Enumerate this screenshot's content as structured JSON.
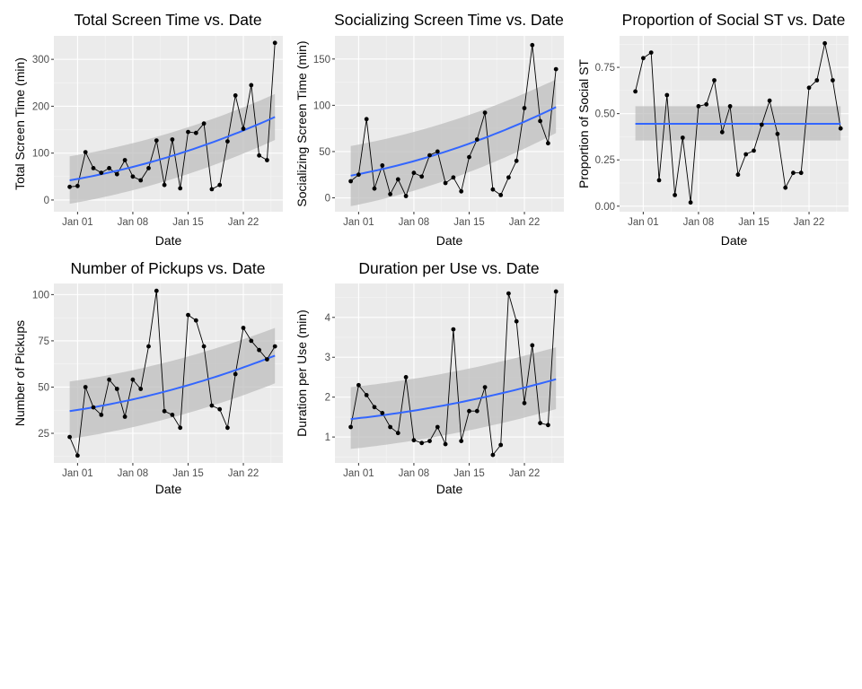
{
  "chart_data": [
    {
      "type": "line",
      "title": "Total Screen Time vs. Date",
      "xlabel": "Date",
      "ylabel": "Total Screen Time (min)",
      "x": [
        "2020-12-31",
        "2021-01-01",
        "2021-01-02",
        "2021-01-03",
        "2021-01-04",
        "2021-01-05",
        "2021-01-06",
        "2021-01-07",
        "2021-01-08",
        "2021-01-09",
        "2021-01-10",
        "2021-01-11",
        "2021-01-12",
        "2021-01-13",
        "2021-01-14",
        "2021-01-15",
        "2021-01-16",
        "2021-01-17",
        "2021-01-18",
        "2021-01-19",
        "2021-01-20",
        "2021-01-21",
        "2021-01-22",
        "2021-01-23",
        "2021-01-24",
        "2021-01-25",
        "2021-01-26"
      ],
      "values": [
        28,
        30,
        102,
        68,
        58,
        68,
        55,
        85,
        50,
        42,
        68,
        127,
        32,
        129,
        25,
        145,
        143,
        163,
        23,
        32,
        125,
        223,
        152,
        245,
        95,
        85,
        335
      ],
      "trend": {
        "method": "smooth",
        "x": [
          "2020-12-31",
          "2021-01-26"
        ],
        "values": [
          42,
          177
        ],
        "band_low": [
          -8,
          128
        ],
        "band_high": [
          93,
          226
        ]
      },
      "xticks": [
        {
          "x": "2021-01-01",
          "label": "Jan 01"
        },
        {
          "x": "2021-01-08",
          "label": "Jan 08"
        },
        {
          "x": "2021-01-15",
          "label": "Jan 15"
        },
        {
          "x": "2021-01-22",
          "label": "Jan 22"
        }
      ],
      "yticks": [
        0,
        100,
        200,
        300
      ],
      "xlim": [
        "2020-12-29",
        "2021-01-27"
      ],
      "ylim": [
        -25,
        350
      ]
    },
    {
      "type": "line",
      "title": "Socializing Screen Time vs. Date",
      "xlabel": "Date",
      "ylabel": "Socializing Screen Time (min)",
      "x": [
        "2020-12-31",
        "2021-01-01",
        "2021-01-02",
        "2021-01-03",
        "2021-01-04",
        "2021-01-05",
        "2021-01-06",
        "2021-01-07",
        "2021-01-08",
        "2021-01-09",
        "2021-01-10",
        "2021-01-11",
        "2021-01-12",
        "2021-01-13",
        "2021-01-14",
        "2021-01-15",
        "2021-01-16",
        "2021-01-17",
        "2021-01-18",
        "2021-01-19",
        "2021-01-20",
        "2021-01-21",
        "2021-01-22",
        "2021-01-23",
        "2021-01-24",
        "2021-01-25",
        "2021-01-26"
      ],
      "values": [
        18,
        25,
        85,
        10,
        35,
        4,
        20,
        2,
        27,
        23,
        46,
        50,
        16,
        22,
        7,
        44,
        63,
        92,
        9,
        3,
        22,
        40,
        97,
        165,
        83,
        59,
        139
      ],
      "trend": {
        "method": "smooth",
        "x": [
          "2020-12-31",
          "2021-01-26"
        ],
        "values": [
          24,
          98
        ],
        "band_low": [
          -9,
          70
        ],
        "band_high": [
          56,
          128
        ]
      },
      "xticks": [
        {
          "x": "2021-01-01",
          "label": "Jan 01"
        },
        {
          "x": "2021-01-08",
          "label": "Jan 08"
        },
        {
          "x": "2021-01-15",
          "label": "Jan 15"
        },
        {
          "x": "2021-01-22",
          "label": "Jan 22"
        }
      ],
      "yticks": [
        0,
        50,
        100,
        150
      ],
      "xlim": [
        "2020-12-29",
        "2021-01-27"
      ],
      "ylim": [
        -15,
        175
      ]
    },
    {
      "type": "line",
      "title": "Proportion of Social ST vs. Date",
      "xlabel": "Date",
      "ylabel": "Proportion of Social ST",
      "x": [
        "2020-12-31",
        "2021-01-01",
        "2021-01-02",
        "2021-01-03",
        "2021-01-04",
        "2021-01-05",
        "2021-01-06",
        "2021-01-07",
        "2021-01-08",
        "2021-01-09",
        "2021-01-10",
        "2021-01-11",
        "2021-01-12",
        "2021-01-13",
        "2021-01-14",
        "2021-01-15",
        "2021-01-16",
        "2021-01-17",
        "2021-01-18",
        "2021-01-19",
        "2021-01-20",
        "2021-01-21",
        "2021-01-22",
        "2021-01-23",
        "2021-01-24",
        "2021-01-25",
        "2021-01-26"
      ],
      "values": [
        0.62,
        0.8,
        0.83,
        0.14,
        0.6,
        0.06,
        0.37,
        0.02,
        0.54,
        0.55,
        0.68,
        0.4,
        0.54,
        0.17,
        0.28,
        0.3,
        0.44,
        0.57,
        0.39,
        0.1,
        0.18,
        0.18,
        0.64,
        0.68,
        0.88,
        0.68,
        0.42
      ],
      "trend": {
        "method": "smooth",
        "x": [
          "2020-12-31",
          "2021-01-26"
        ],
        "values": [
          0.445,
          0.445
        ],
        "band_low": [
          0.355,
          0.355
        ],
        "band_high": [
          0.54,
          0.54
        ]
      },
      "xticks": [
        {
          "x": "2021-01-01",
          "label": "Jan 01"
        },
        {
          "x": "2021-01-08",
          "label": "Jan 08"
        },
        {
          "x": "2021-01-15",
          "label": "Jan 15"
        },
        {
          "x": "2021-01-22",
          "label": "Jan 22"
        }
      ],
      "yticks": [
        0.0,
        0.25,
        0.5,
        0.75
      ],
      "ytick_labels": [
        "0.00",
        "0.25",
        "0.50",
        "0.75"
      ],
      "xlim": [
        "2020-12-29",
        "2021-01-27"
      ],
      "ylim": [
        -0.03,
        0.92
      ]
    },
    {
      "type": "line",
      "title": "Number of Pickups vs. Date",
      "xlabel": "Date",
      "ylabel": "Number of Pickups",
      "x": [
        "2020-12-31",
        "2021-01-01",
        "2021-01-02",
        "2021-01-03",
        "2021-01-04",
        "2021-01-05",
        "2021-01-06",
        "2021-01-07",
        "2021-01-08",
        "2021-01-09",
        "2021-01-10",
        "2021-01-11",
        "2021-01-12",
        "2021-01-13",
        "2021-01-14",
        "2021-01-15",
        "2021-01-16",
        "2021-01-17",
        "2021-01-18",
        "2021-01-19",
        "2021-01-20",
        "2021-01-21",
        "2021-01-22",
        "2021-01-23",
        "2021-01-24",
        "2021-01-25",
        "2021-01-26"
      ],
      "values": [
        23,
        13,
        50,
        39,
        35,
        54,
        49,
        34,
        54,
        49,
        72,
        102,
        37,
        35,
        28,
        89,
        86,
        72,
        40,
        38,
        28,
        57,
        82,
        75,
        70,
        65,
        72
      ],
      "trend": {
        "method": "smooth",
        "x": [
          "2020-12-31",
          "2021-01-26"
        ],
        "values": [
          37,
          67
        ],
        "band_low": [
          22,
          52
        ],
        "band_high": [
          53,
          82
        ]
      },
      "xticks": [
        {
          "x": "2021-01-01",
          "label": "Jan 01"
        },
        {
          "x": "2021-01-08",
          "label": "Jan 08"
        },
        {
          "x": "2021-01-15",
          "label": "Jan 15"
        },
        {
          "x": "2021-01-22",
          "label": "Jan 22"
        }
      ],
      "yticks": [
        25,
        50,
        75,
        100
      ],
      "xlim": [
        "2020-12-29",
        "2021-01-27"
      ],
      "ylim": [
        9,
        106
      ]
    },
    {
      "type": "line",
      "title": "Duration per Use vs. Date",
      "xlabel": "Date",
      "ylabel": "Duration per Use (min)",
      "x": [
        "2020-12-31",
        "2021-01-01",
        "2021-01-02",
        "2021-01-03",
        "2021-01-04",
        "2021-01-05",
        "2021-01-06",
        "2021-01-07",
        "2021-01-08",
        "2021-01-09",
        "2021-01-10",
        "2021-01-11",
        "2021-01-12",
        "2021-01-13",
        "2021-01-14",
        "2021-01-15",
        "2021-01-16",
        "2021-01-17",
        "2021-01-18",
        "2021-01-19",
        "2021-01-20",
        "2021-01-21",
        "2021-01-22",
        "2021-01-23",
        "2021-01-24",
        "2021-01-25",
        "2021-01-26"
      ],
      "values": [
        1.25,
        2.3,
        2.05,
        1.75,
        1.6,
        1.25,
        1.1,
        2.5,
        0.92,
        0.85,
        0.9,
        1.25,
        0.82,
        3.7,
        0.9,
        1.65,
        1.65,
        2.25,
        0.55,
        0.8,
        4.6,
        3.9,
        1.85,
        3.3,
        1.35,
        1.3,
        4.65
      ],
      "trend": {
        "method": "smooth",
        "x": [
          "2020-12-31",
          "2021-01-26"
        ],
        "values": [
          1.45,
          2.45
        ],
        "band_low": [
          0.7,
          1.7
        ],
        "band_high": [
          2.25,
          3.25
        ]
      },
      "xticks": [
        {
          "x": "2021-01-01",
          "label": "Jan 01"
        },
        {
          "x": "2021-01-08",
          "label": "Jan 08"
        },
        {
          "x": "2021-01-15",
          "label": "Jan 15"
        },
        {
          "x": "2021-01-22",
          "label": "Jan 22"
        }
      ],
      "yticks": [
        1,
        2,
        3,
        4
      ],
      "xlim": [
        "2020-12-29",
        "2021-01-27"
      ],
      "ylim": [
        0.35,
        4.85
      ]
    }
  ],
  "colors": {
    "panel": "#EBEBEB",
    "gridMajor": "#FFFFFF",
    "gridMinor": "#F5F5F5",
    "band": "#BEBEBE",
    "smooth": "#3366FF",
    "line": "#000000",
    "point": "#000000"
  }
}
